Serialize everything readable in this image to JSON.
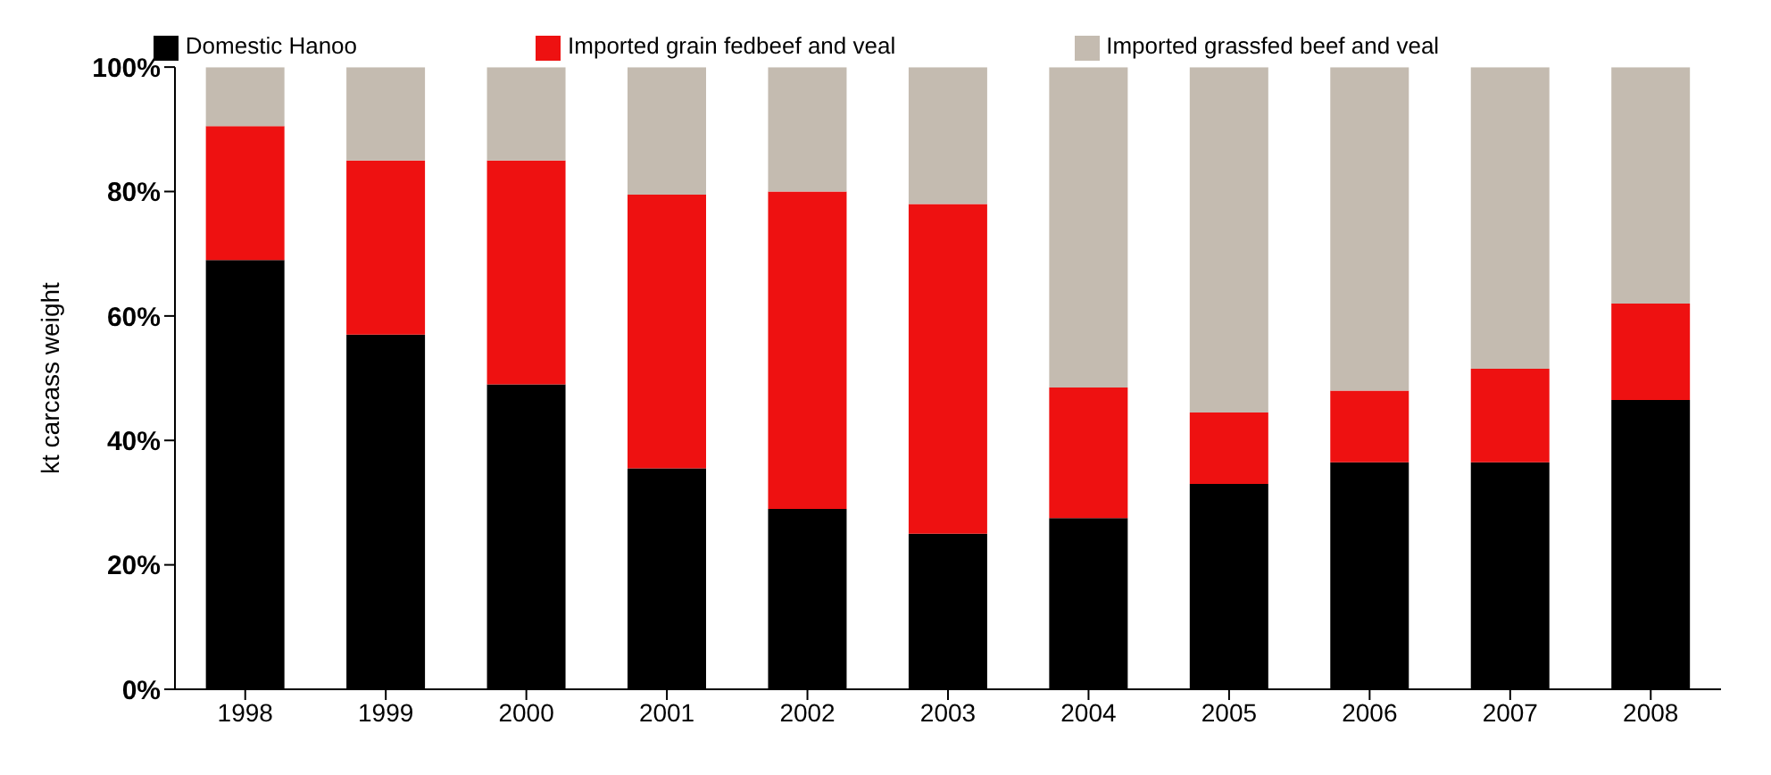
{
  "chart_data": {
    "type": "bar",
    "stacked": true,
    "ylabel": "kt carcass weight",
    "legend": "top",
    "categories": [
      "1998",
      "1999",
      "2000",
      "2001",
      "2002",
      "2003",
      "2004",
      "2005",
      "2006",
      "2007",
      "2008"
    ],
    "series": [
      {
        "name": "Domestic Hanoo",
        "color": "#000000",
        "values": [
          69,
          57,
          49,
          35.5,
          29,
          25,
          27.5,
          33,
          36.5,
          36.5,
          46.5
        ]
      },
      {
        "name": "Imported grain fedbeef and veal",
        "color": "#ee1111",
        "values": [
          21.5,
          28,
          36,
          44,
          51,
          53,
          21,
          11.5,
          11.5,
          15,
          15.5
        ]
      },
      {
        "name": "Imported grassfed beef and veal",
        "color": "#c4bbb0",
        "values": [
          9.5,
          15,
          15,
          20.5,
          20,
          22,
          51.5,
          55.5,
          52,
          48.5,
          38
        ]
      }
    ],
    "ylim": [
      0,
      100
    ],
    "yticks": [
      {
        "value": 0,
        "label": "0%"
      },
      {
        "value": 20,
        "label": "20%"
      },
      {
        "value": 40,
        "label": "40%"
      },
      {
        "value": 60,
        "label": "60%"
      },
      {
        "value": 80,
        "label": "80%"
      },
      {
        "value": 100,
        "label": "100%"
      }
    ]
  }
}
